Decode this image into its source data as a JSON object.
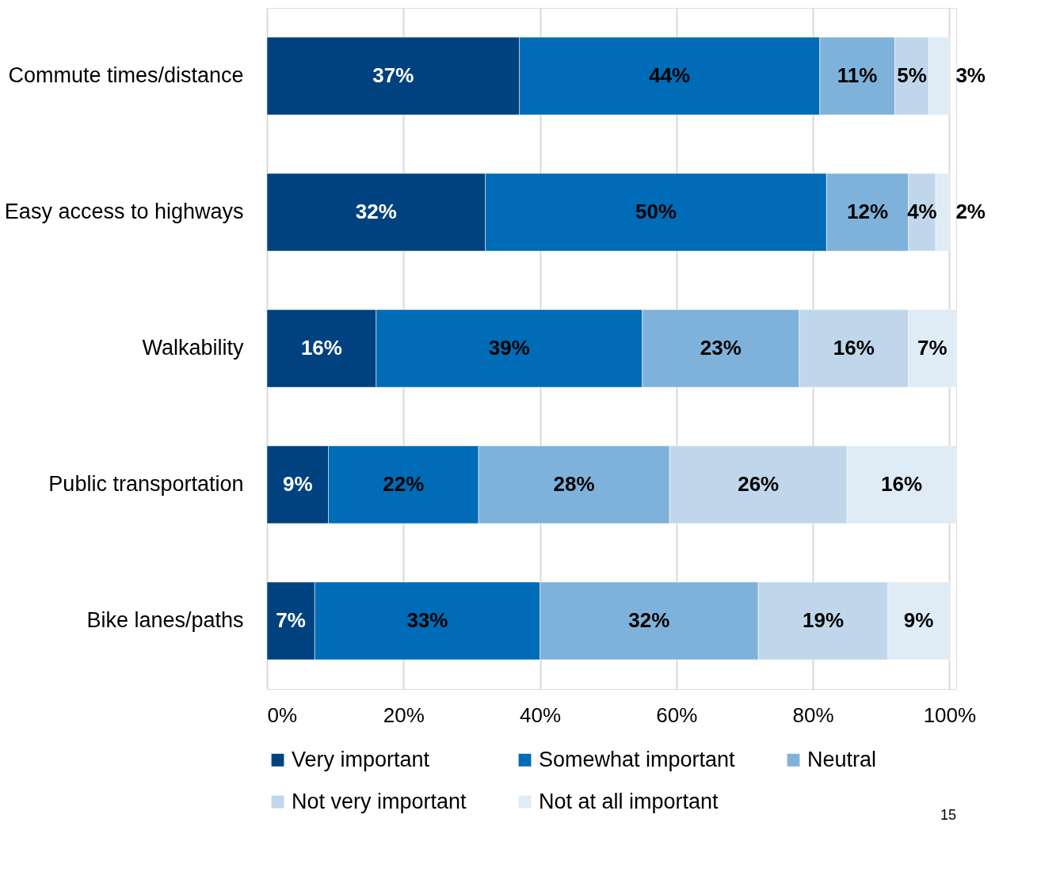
{
  "chart_data": {
    "type": "bar",
    "orientation": "horizontal",
    "stacked": true,
    "categories": [
      "Commute times/distance",
      "Easy access to highways",
      "Walkability",
      "Public transportation",
      "Bike lanes/paths"
    ],
    "series": [
      {
        "name": "Very important",
        "color": "#00427f",
        "values": [
          37,
          32,
          16,
          9,
          7
        ],
        "value_labels": [
          "37%",
          "32%",
          "16%",
          "9%",
          "7%"
        ]
      },
      {
        "name": "Somewhat important",
        "color": "#006bb6",
        "values": [
          44,
          50,
          39,
          22,
          33
        ],
        "value_labels": [
          "44%",
          "50%",
          "39%",
          "22%",
          "33%"
        ]
      },
      {
        "name": "Neutral",
        "color": "#7fb2da",
        "values": [
          11,
          12,
          23,
          28,
          32
        ],
        "value_labels": [
          "11%",
          "12%",
          "23%",
          "28%",
          "32%"
        ]
      },
      {
        "name": "Not very important",
        "color": "#c0d7eb",
        "values": [
          5,
          4,
          16,
          26,
          19
        ],
        "value_labels": [
          "5%",
          "4%",
          "16%",
          "26%",
          "19%"
        ]
      },
      {
        "name": "Not at all important",
        "color": "#dfebf5",
        "values": [
          3,
          2,
          7,
          16,
          9
        ],
        "value_labels": [
          "3%",
          "2%",
          "7%",
          "16%",
          "9%"
        ]
      }
    ],
    "xlim": [
      0,
      101
    ],
    "xticks": [
      {
        "value": 0,
        "label": "0%"
      },
      {
        "value": 20,
        "label": "20%"
      },
      {
        "value": 40,
        "label": "40%"
      },
      {
        "value": 60,
        "label": "60%"
      },
      {
        "value": 80,
        "label": "80%"
      },
      {
        "value": 100,
        "label": "100%"
      }
    ],
    "grid": "x",
    "legend": "bottom",
    "annotations": [
      "15"
    ]
  }
}
